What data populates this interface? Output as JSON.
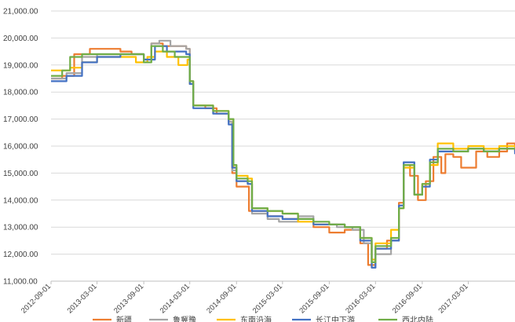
{
  "chart_data": {
    "type": "line",
    "title": "",
    "xlabel": "",
    "ylabel": "",
    "ylim": [
      11000,
      21000
    ],
    "yticks": [
      "11,000.00",
      "12,000.00",
      "13,000.00",
      "14,000.00",
      "15,000.00",
      "16,000.00",
      "17,000.00",
      "18,000.00",
      "19,000.00",
      "20,000.00",
      "21,000.00"
    ],
    "xticks": [
      "2012-09-01",
      "2013-03-01",
      "2013-09-01",
      "2014-03-01",
      "2014-09-01",
      "2015-03-01",
      "2015-09-01",
      "2016-03-01",
      "2016-09-01",
      "2017-03-01"
    ],
    "x_range": [
      "2012-09-01",
      "2017-09-01"
    ],
    "grid": "horizontal",
    "legend_position": "bottom",
    "series": [
      {
        "name": "新疆",
        "color": "#ED7D31",
        "points": [
          [
            "2012-09-01",
            18500
          ],
          [
            "2012-10-15",
            18600
          ],
          [
            "2012-12-01",
            19400
          ],
          [
            "2013-02-01",
            19600
          ],
          [
            "2013-04-01",
            19600
          ],
          [
            "2013-06-01",
            19500
          ],
          [
            "2013-07-15",
            19400
          ],
          [
            "2013-09-01",
            19200
          ],
          [
            "2013-10-01",
            19800
          ],
          [
            "2013-11-15",
            19700
          ],
          [
            "2014-01-01",
            19700
          ],
          [
            "2014-02-15",
            19600
          ],
          [
            "2014-03-01",
            18400
          ],
          [
            "2014-03-15",
            17500
          ],
          [
            "2014-05-01",
            17400
          ],
          [
            "2014-06-15",
            17200
          ],
          [
            "2014-08-01",
            16900
          ],
          [
            "2014-08-15",
            15000
          ],
          [
            "2014-09-01",
            14500
          ],
          [
            "2014-10-01",
            14500
          ],
          [
            "2014-10-20",
            13600
          ],
          [
            "2015-01-01",
            13400
          ],
          [
            "2015-03-01",
            13300
          ],
          [
            "2015-05-01",
            13300
          ],
          [
            "2015-07-01",
            13000
          ],
          [
            "2015-09-01",
            12800
          ],
          [
            "2015-11-01",
            12900
          ],
          [
            "2016-01-01",
            12400
          ],
          [
            "2016-02-01",
            11600
          ],
          [
            "2016-03-01",
            12200
          ],
          [
            "2016-04-15",
            12500
          ],
          [
            "2016-06-01",
            13900
          ],
          [
            "2016-06-20",
            15300
          ],
          [
            "2016-07-15",
            14900
          ],
          [
            "2016-08-15",
            14000
          ],
          [
            "2016-09-15",
            14700
          ],
          [
            "2016-10-15",
            15600
          ],
          [
            "2016-11-15",
            15000
          ],
          [
            "2016-12-01",
            15700
          ],
          [
            "2017-01-01",
            15600
          ],
          [
            "2017-02-01",
            15200
          ],
          [
            "2017-04-01",
            15800
          ],
          [
            "2017-05-15",
            15600
          ],
          [
            "2017-07-01",
            15800
          ],
          [
            "2017-08-01",
            16100
          ],
          [
            "2017-09-01",
            16000
          ]
        ]
      },
      {
        "name": "鲁冀豫",
        "color": "#A5A5A5",
        "points": [
          [
            "2012-09-01",
            18500
          ],
          [
            "2012-11-01",
            18700
          ],
          [
            "2013-01-01",
            19300
          ],
          [
            "2013-03-01",
            19400
          ],
          [
            "2013-06-01",
            19400
          ],
          [
            "2013-09-01",
            19200
          ],
          [
            "2013-10-01",
            19800
          ],
          [
            "2013-11-01",
            19900
          ],
          [
            "2013-12-15",
            19700
          ],
          [
            "2014-02-15",
            19600
          ],
          [
            "2014-03-01",
            18300
          ],
          [
            "2014-03-15",
            17500
          ],
          [
            "2014-06-01",
            17200
          ],
          [
            "2014-08-01",
            16900
          ],
          [
            "2014-08-15",
            15100
          ],
          [
            "2014-09-01",
            14700
          ],
          [
            "2014-10-15",
            14600
          ],
          [
            "2014-11-01",
            13500
          ],
          [
            "2015-01-01",
            13300
          ],
          [
            "2015-02-15",
            13200
          ],
          [
            "2015-05-01",
            13400
          ],
          [
            "2015-07-01",
            13100
          ],
          [
            "2015-10-01",
            13000
          ],
          [
            "2015-12-01",
            12900
          ],
          [
            "2016-01-15",
            12400
          ],
          [
            "2016-02-15",
            11500
          ],
          [
            "2016-03-01",
            12000
          ],
          [
            "2016-05-01",
            12500
          ],
          [
            "2016-06-01",
            13800
          ],
          [
            "2016-06-20",
            15400
          ],
          [
            "2016-08-01",
            14200
          ],
          [
            "2016-09-01",
            14600
          ],
          [
            "2016-10-01",
            15400
          ],
          [
            "2016-11-01",
            15800
          ],
          [
            "2017-01-01",
            15800
          ],
          [
            "2017-03-01",
            15900
          ],
          [
            "2017-05-01",
            15800
          ],
          [
            "2017-07-01",
            15900
          ],
          [
            "2017-09-01",
            15800
          ]
        ]
      },
      {
        "name": "东南沿海",
        "color": "#FFC000",
        "points": [
          [
            "2012-09-01",
            18800
          ],
          [
            "2012-11-15",
            18900
          ],
          [
            "2013-01-01",
            19100
          ],
          [
            "2013-03-01",
            19300
          ],
          [
            "2013-06-01",
            19300
          ],
          [
            "2013-08-01",
            19100
          ],
          [
            "2013-09-15",
            19300
          ],
          [
            "2013-10-15",
            19500
          ],
          [
            "2013-12-01",
            19300
          ],
          [
            "2014-01-15",
            19000
          ],
          [
            "2014-02-20",
            19200
          ],
          [
            "2014-03-01",
            18300
          ],
          [
            "2014-03-15",
            17500
          ],
          [
            "2014-06-01",
            17300
          ],
          [
            "2014-08-01",
            17000
          ],
          [
            "2014-08-20",
            15200
          ],
          [
            "2014-09-01",
            14900
          ],
          [
            "2014-10-15",
            14800
          ],
          [
            "2014-11-01",
            13700
          ],
          [
            "2015-01-01",
            13600
          ],
          [
            "2015-03-01",
            13500
          ],
          [
            "2015-05-01",
            13200
          ],
          [
            "2015-07-01",
            13100
          ],
          [
            "2015-09-01",
            13100
          ],
          [
            "2015-11-01",
            13000
          ],
          [
            "2016-01-01",
            12600
          ],
          [
            "2016-02-15",
            11800
          ],
          [
            "2016-03-01",
            12400
          ],
          [
            "2016-05-01",
            12900
          ],
          [
            "2016-06-01",
            13700
          ],
          [
            "2016-06-20",
            15200
          ],
          [
            "2016-08-01",
            14200
          ],
          [
            "2016-09-01",
            14600
          ],
          [
            "2016-10-01",
            15300
          ],
          [
            "2016-11-01",
            16100
          ],
          [
            "2017-01-01",
            15900
          ],
          [
            "2017-03-01",
            16000
          ],
          [
            "2017-05-01",
            15900
          ],
          [
            "2017-07-01",
            16000
          ],
          [
            "2017-09-01",
            15800
          ]
        ]
      },
      {
        "name": "长江中下游",
        "color": "#4472C4",
        "points": [
          [
            "2012-09-01",
            18400
          ],
          [
            "2012-11-01",
            18600
          ],
          [
            "2013-01-01",
            19100
          ],
          [
            "2013-03-01",
            19300
          ],
          [
            "2013-06-01",
            19400
          ],
          [
            "2013-09-01",
            19200
          ],
          [
            "2013-10-15",
            19700
          ],
          [
            "2013-12-01",
            19500
          ],
          [
            "2014-02-15",
            19400
          ],
          [
            "2014-03-01",
            18300
          ],
          [
            "2014-03-15",
            17400
          ],
          [
            "2014-06-01",
            17200
          ],
          [
            "2014-08-01",
            16800
          ],
          [
            "2014-08-15",
            15200
          ],
          [
            "2014-09-01",
            14700
          ],
          [
            "2014-10-15",
            14600
          ],
          [
            "2014-11-01",
            13600
          ],
          [
            "2015-01-01",
            13400
          ],
          [
            "2015-03-01",
            13300
          ],
          [
            "2015-05-01",
            13300
          ],
          [
            "2015-07-01",
            13100
          ],
          [
            "2015-09-01",
            13100
          ],
          [
            "2015-11-01",
            13000
          ],
          [
            "2016-01-01",
            12500
          ],
          [
            "2016-02-15",
            11500
          ],
          [
            "2016-03-01",
            12200
          ],
          [
            "2016-05-01",
            12500
          ],
          [
            "2016-06-01",
            13800
          ],
          [
            "2016-06-20",
            15400
          ],
          [
            "2016-08-01",
            14200
          ],
          [
            "2016-09-01",
            14500
          ],
          [
            "2016-10-01",
            15500
          ],
          [
            "2016-11-01",
            15800
          ],
          [
            "2017-01-01",
            15800
          ],
          [
            "2017-03-01",
            15900
          ],
          [
            "2017-05-01",
            15800
          ],
          [
            "2017-07-01",
            15900
          ],
          [
            "2017-09-01",
            15700
          ]
        ]
      },
      {
        "name": "西北内陆",
        "color": "#70AD47",
        "points": [
          [
            "2012-09-01",
            18600
          ],
          [
            "2012-10-15",
            18800
          ],
          [
            "2012-11-15",
            19300
          ],
          [
            "2013-01-01",
            19400
          ],
          [
            "2013-03-01",
            19400
          ],
          [
            "2013-06-01",
            19400
          ],
          [
            "2013-09-01",
            19100
          ],
          [
            "2013-10-01",
            19700
          ],
          [
            "2013-11-15",
            19500
          ],
          [
            "2014-01-01",
            19300
          ],
          [
            "2014-02-20",
            19300
          ],
          [
            "2014-03-01",
            18400
          ],
          [
            "2014-03-15",
            17500
          ],
          [
            "2014-06-01",
            17300
          ],
          [
            "2014-08-01",
            17000
          ],
          [
            "2014-08-20",
            15300
          ],
          [
            "2014-09-01",
            14800
          ],
          [
            "2014-10-15",
            14700
          ],
          [
            "2014-11-01",
            13700
          ],
          [
            "2015-01-01",
            13600
          ],
          [
            "2015-03-01",
            13500
          ],
          [
            "2015-05-01",
            13300
          ],
          [
            "2015-07-01",
            13200
          ],
          [
            "2015-09-01",
            13100
          ],
          [
            "2015-11-01",
            13000
          ],
          [
            "2016-01-01",
            12600
          ],
          [
            "2016-02-15",
            11700
          ],
          [
            "2016-03-01",
            12300
          ],
          [
            "2016-05-01",
            12600
          ],
          [
            "2016-06-01",
            13700
          ],
          [
            "2016-06-20",
            15300
          ],
          [
            "2016-08-01",
            14200
          ],
          [
            "2016-09-01",
            14600
          ],
          [
            "2016-10-01",
            15400
          ],
          [
            "2016-11-01",
            15900
          ],
          [
            "2017-01-01",
            15800
          ],
          [
            "2017-03-01",
            15900
          ],
          [
            "2017-05-01",
            15800
          ],
          [
            "2017-07-01",
            15900
          ],
          [
            "2017-09-01",
            15900
          ]
        ]
      }
    ]
  }
}
